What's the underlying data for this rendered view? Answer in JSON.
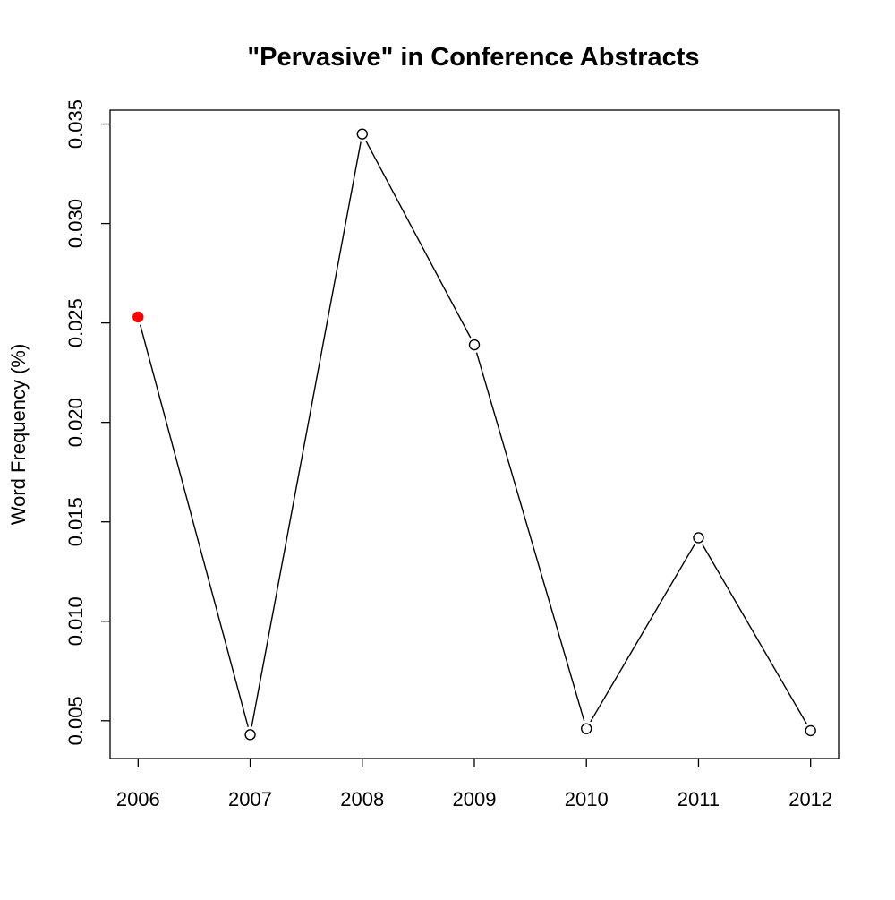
{
  "chart_data": {
    "type": "line",
    "title": "\"Pervasive\" in Conference Abstracts",
    "xlabel": "",
    "ylabel": "Word Frequency (%)",
    "x": [
      2006,
      2007,
      2008,
      2009,
      2010,
      2011,
      2012
    ],
    "x_tick_labels": [
      "2006",
      "2007",
      "2008",
      "2009",
      "2010",
      "2011",
      "2012"
    ],
    "y_ticks": [
      0.005,
      0.01,
      0.015,
      0.02,
      0.025,
      0.03,
      0.035
    ],
    "y_tick_labels": [
      "0.005",
      "0.010",
      "0.015",
      "0.020",
      "0.025",
      "0.030",
      "0.035"
    ],
    "xlim": [
      2005.75,
      2012.25
    ],
    "ylim": [
      0.0031,
      0.0357
    ],
    "series": [
      {
        "values": [
          0.0253,
          0.0043,
          0.0345,
          0.0239,
          0.0046,
          0.0142,
          0.0045
        ],
        "color": "#000000",
        "marker": "open-circle"
      }
    ],
    "highlighted_point": {
      "index": 0,
      "color": "#ff0000"
    },
    "grid": false,
    "legend": "none"
  }
}
